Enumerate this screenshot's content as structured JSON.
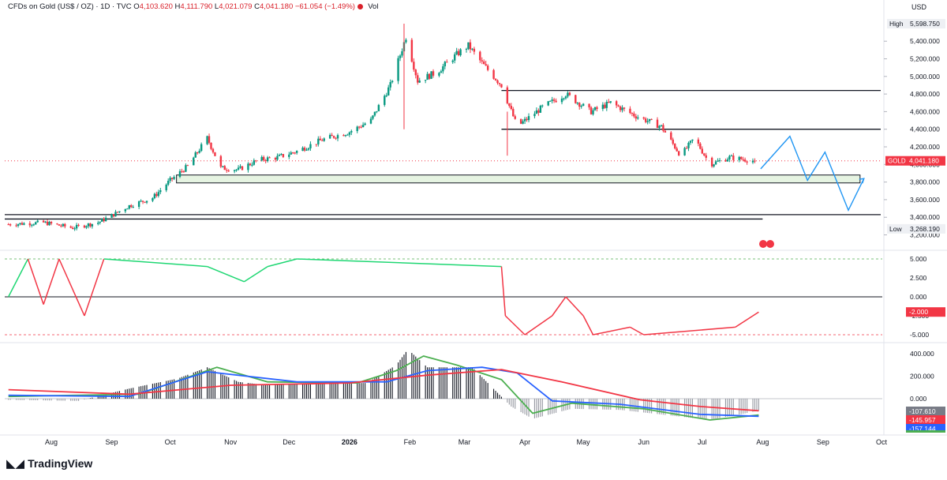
{
  "header": {
    "title": "CFDs on Gold (US$ / OZ) · 1D · TVC",
    "ohlc": [
      {
        "k": "O",
        "v": "4,103.620"
      },
      {
        "k": "H",
        "v": "4,111.790"
      },
      {
        "k": "L",
        "v": "4,021.079"
      },
      {
        "k": "C",
        "v": "4,041.180"
      },
      {
        "k": "",
        "v": "−61.054 (−1.49%)"
      }
    ],
    "vol_label": "Vol",
    "vol_icon": "circle-icon"
  },
  "price_axis": {
    "currency": "USD",
    "ticks": [
      "3,200.000",
      "3,400.000",
      "3,600.000",
      "3,800.000",
      "4,000.000",
      "4,200.000",
      "4,400.000",
      "4,600.000",
      "4,800.000",
      "5,000.000",
      "5,200.000",
      "5,400.000"
    ],
    "high_label": "High",
    "high_value": "5,598.750",
    "low_label": "Low",
    "low_value": "3,268.190",
    "symbol_label": "GOLD",
    "last_price": "4,041.180"
  },
  "time_axis": {
    "labels": [
      "Aug",
      "Sep",
      "Oct",
      "Nov",
      "Dec",
      "2026",
      "Feb",
      "Mar",
      "Apr",
      "May",
      "Jun",
      "Jul",
      "Aug",
      "Sep",
      "Oct"
    ]
  },
  "indicator1": {
    "ticks": [
      "5.000",
      "2.500",
      "0.000",
      "-2.500",
      "-5.000"
    ],
    "last_value": "-2.000"
  },
  "indicator2": {
    "ticks": [
      "400.000",
      "200.000",
      "0.000"
    ],
    "badges": [
      "-107.610",
      "-145.957",
      "-157.144"
    ]
  },
  "colors": {
    "up": "#089981",
    "down": "#f23645",
    "osc_pos": "#1fd773",
    "osc_neg": "#f23645",
    "macd_green": "#4caf50",
    "macd_blue": "#2962ff",
    "macd_red": "#f23645",
    "projection": "#2196f3",
    "zone_fill": "#e6f4e2"
  },
  "footer": {
    "brand": "TradingView",
    "brand_icon": "tradingview-logo-icon"
  },
  "chart_data": {
    "type": "candlestick",
    "title": "CFDs on Gold (US$ / OZ)",
    "ylim": [
      3150,
      5650
    ],
    "x_months": [
      "Aug",
      "Sep",
      "Oct",
      "Nov",
      "Dec",
      "Jan",
      "Feb",
      "Mar",
      "Apr",
      "May",
      "Jun",
      "Jul",
      "Aug",
      "Sep",
      "Oct"
    ],
    "price_path": [
      {
        "date": "2025-07-10",
        "close": 3320
      },
      {
        "date": "2025-07-28",
        "close": 3340
      },
      {
        "date": "2025-08-12",
        "close": 3280
      },
      {
        "date": "2025-08-25",
        "close": 3340
      },
      {
        "date": "2025-09-01",
        "close": 3420
      },
      {
        "date": "2025-09-10",
        "close": 3530
      },
      {
        "date": "2025-09-22",
        "close": 3620
      },
      {
        "date": "2025-10-01",
        "close": 3820
      },
      {
        "date": "2025-10-10",
        "close": 3980
      },
      {
        "date": "2025-10-20",
        "close": 4300
      },
      {
        "date": "2025-10-27",
        "close": 3960
      },
      {
        "date": "2025-11-05",
        "close": 3940
      },
      {
        "date": "2025-11-15",
        "close": 4050
      },
      {
        "date": "2025-11-25",
        "close": 4080
      },
      {
        "date": "2025-12-05",
        "close": 4150
      },
      {
        "date": "2025-12-18",
        "close": 4280
      },
      {
        "date": "2026-01-01",
        "close": 4370
      },
      {
        "date": "2026-01-12",
        "close": 4500
      },
      {
        "date": "2026-01-22",
        "close": 4900
      },
      {
        "date": "2026-01-30",
        "close": 5450
      },
      {
        "date": "2026-02-05",
        "close": 4950
      },
      {
        "date": "2026-02-15",
        "close": 5050
      },
      {
        "date": "2026-02-25",
        "close": 5250
      },
      {
        "date": "2026-03-03",
        "close": 5350
      },
      {
        "date": "2026-03-10",
        "close": 5150
      },
      {
        "date": "2026-03-20",
        "close": 4900
      },
      {
        "date": "2026-03-28",
        "close": 4430
      },
      {
        "date": "2026-04-10",
        "close": 4650
      },
      {
        "date": "2026-04-22",
        "close": 4800
      },
      {
        "date": "2026-05-05",
        "close": 4600
      },
      {
        "date": "2026-05-15",
        "close": 4700
      },
      {
        "date": "2026-05-28",
        "close": 4550
      },
      {
        "date": "2026-06-10",
        "close": 4430
      },
      {
        "date": "2026-06-20",
        "close": 4100
      },
      {
        "date": "2026-06-27",
        "close": 4300
      },
      {
        "date": "2026-07-05",
        "close": 4000
      },
      {
        "date": "2026-07-15",
        "close": 4080
      },
      {
        "date": "2026-07-28",
        "close": 4041
      }
    ],
    "levels": [
      {
        "price": 4840,
        "from": "2026-03-20",
        "to": "right"
      },
      {
        "price": 4400,
        "from": "2026-03-20",
        "to": "right"
      },
      {
        "price": 3430,
        "from": "left",
        "to": "right"
      },
      {
        "price": 3380,
        "from": "left",
        "to": "2026-08-01"
      }
    ],
    "zone": {
      "from": 3790,
      "to": 3880,
      "start": "2025-10-01",
      "end": "2026-09-20"
    },
    "projection": [
      {
        "date": "2026-07-31",
        "price": 3950
      },
      {
        "date": "2026-08-15",
        "price": 4320
      },
      {
        "date": "2026-08-24",
        "price": 3820
      },
      {
        "date": "2026-09-02",
        "price": 4140
      },
      {
        "date": "2026-09-14",
        "price": 3480
      },
      {
        "date": "2026-09-22",
        "price": 3840
      }
    ],
    "oscillator": {
      "ylim": [
        -5.5,
        5.5
      ],
      "steps": [
        {
          "date": "2025-07-10",
          "value": 0
        },
        {
          "date": "2025-07-20",
          "value": 5
        },
        {
          "date": "2025-07-28",
          "value": -1
        },
        {
          "date": "2025-08-05",
          "value": 5
        },
        {
          "date": "2025-08-18",
          "value": -2.5
        },
        {
          "date": "2025-08-28",
          "value": 5
        },
        {
          "date": "2025-10-20",
          "value": 4
        },
        {
          "date": "2025-11-08",
          "value": 2
        },
        {
          "date": "2025-11-20",
          "value": 4
        },
        {
          "date": "2025-12-05",
          "value": 5
        },
        {
          "date": "2026-03-20",
          "value": 4
        },
        {
          "date": "2026-03-22",
          "value": -2.5
        },
        {
          "date": "2026-04-01",
          "value": -5
        },
        {
          "date": "2026-04-15",
          "value": -2.5
        },
        {
          "date": "2026-04-22",
          "value": 0
        },
        {
          "date": "2026-05-01",
          "value": -2.5
        },
        {
          "date": "2026-05-06",
          "value": -5
        },
        {
          "date": "2026-05-25",
          "value": -4
        },
        {
          "date": "2026-06-01",
          "value": -5
        },
        {
          "date": "2026-07-18",
          "value": -4
        },
        {
          "date": "2026-07-30",
          "value": -2
        }
      ]
    },
    "macd": {
      "ylim": [
        -230,
        460
      ],
      "histogram": [
        {
          "date": "2025-07-10",
          "value": -10
        },
        {
          "date": "2025-08-15",
          "value": -20
        },
        {
          "date": "2025-09-10",
          "value": 90
        },
        {
          "date": "2025-10-05",
          "value": 180
        },
        {
          "date": "2025-10-20",
          "value": 280
        },
        {
          "date": "2025-11-05",
          "value": 150
        },
        {
          "date": "2025-11-20",
          "value": 120
        },
        {
          "date": "2025-12-15",
          "value": 140
        },
        {
          "date": "2026-01-10",
          "value": 140
        },
        {
          "date": "2026-01-25",
          "value": 300
        },
        {
          "date": "2026-01-31",
          "value": 440
        },
        {
          "date": "2026-02-10",
          "value": 280
        },
        {
          "date": "2026-03-05",
          "value": 280
        },
        {
          "date": "2026-03-25",
          "value": -70
        },
        {
          "date": "2026-04-05",
          "value": -180
        },
        {
          "date": "2026-04-25",
          "value": -90
        },
        {
          "date": "2026-05-20",
          "value": -100
        },
        {
          "date": "2026-06-20",
          "value": -160
        },
        {
          "date": "2026-07-05",
          "value": -190
        },
        {
          "date": "2026-07-30",
          "value": -107.61
        }
      ],
      "lines": [
        {
          "name": "",
          "color": "#4caf50",
          "points": [
            {
              "date": "2025-07-10",
              "value": 20
            },
            {
              "date": "2025-09-15",
              "value": 40
            },
            {
              "date": "2025-10-25",
              "value": 280
            },
            {
              "date": "2025-11-20",
              "value": 150
            },
            {
              "date": "2026-01-05",
              "value": 140
            },
            {
              "date": "2026-01-25",
              "value": 250
            },
            {
              "date": "2026-02-08",
              "value": 380
            },
            {
              "date": "2026-02-25",
              "value": 300
            },
            {
              "date": "2026-03-20",
              "value": 170
            },
            {
              "date": "2026-04-05",
              "value": -130
            },
            {
              "date": "2026-04-25",
              "value": -40
            },
            {
              "date": "2026-06-01",
              "value": -90
            },
            {
              "date": "2026-07-05",
              "value": -190
            },
            {
              "date": "2026-07-30",
              "value": -145.957
            }
          ]
        },
        {
          "name": "",
          "color": "#2962ff",
          "points": [
            {
              "date": "2025-07-10",
              "value": 30
            },
            {
              "date": "2025-09-10",
              "value": 20
            },
            {
              "date": "2025-10-20",
              "value": 240
            },
            {
              "date": "2025-12-05",
              "value": 150
            },
            {
              "date": "2026-01-20",
              "value": 150
            },
            {
              "date": "2026-02-10",
              "value": 250
            },
            {
              "date": "2026-03-10",
              "value": 280
            },
            {
              "date": "2026-03-28",
              "value": 230
            },
            {
              "date": "2026-04-15",
              "value": -20
            },
            {
              "date": "2026-05-20",
              "value": -50
            },
            {
              "date": "2026-06-30",
              "value": -140
            },
            {
              "date": "2026-07-30",
              "value": -157.144
            }
          ]
        },
        {
          "name": "",
          "color": "#f23645",
          "points": [
            {
              "date": "2025-07-10",
              "value": 80
            },
            {
              "date": "2025-09-10",
              "value": 40
            },
            {
              "date": "2025-11-01",
              "value": 120
            },
            {
              "date": "2026-01-01",
              "value": 140
            },
            {
              "date": "2026-02-10",
              "value": 210
            },
            {
              "date": "2026-03-20",
              "value": 260
            },
            {
              "date": "2026-04-20",
              "value": 150
            },
            {
              "date": "2026-05-30",
              "value": -10
            },
            {
              "date": "2026-06-30",
              "value": -70
            },
            {
              "date": "2026-07-30",
              "value": -107.61
            }
          ]
        }
      ]
    }
  }
}
